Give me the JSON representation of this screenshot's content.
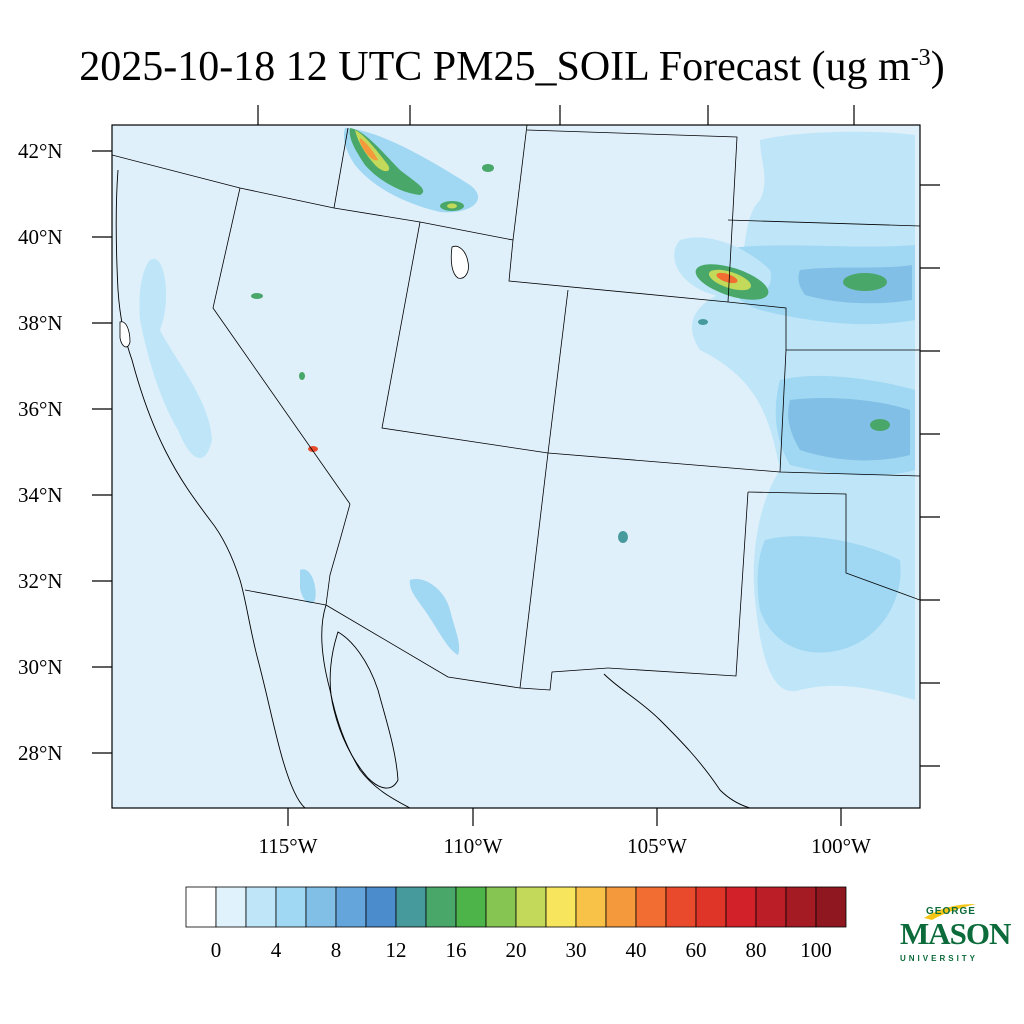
{
  "title": {
    "text": "2025-10-18 12 UTC PM25_SOIL Forecast (ug m",
    "superscript": "-3",
    "closing": ")"
  },
  "map": {
    "lat_labels": [
      "42°N",
      "40°N",
      "38°N",
      "36°N",
      "34°N",
      "32°N",
      "30°N",
      "28°N"
    ],
    "lon_labels": [
      "115°W",
      "110°W",
      "105°W",
      "100°W"
    ],
    "background_color": "#dff0fb"
  },
  "colorbar": {
    "colors": [
      "#ffffff",
      "#e0f3fc",
      "#bfe6f8",
      "#a0d8f3",
      "#82bfe6",
      "#64a6dc",
      "#4a8ccc",
      "#479a9c",
      "#4aa76a",
      "#4db449",
      "#87c552",
      "#c3d95a",
      "#f6e55d",
      "#f8c148",
      "#f59a3c",
      "#f26d31",
      "#e94a2c",
      "#df3529",
      "#d22128",
      "#bb1e26",
      "#a51b23",
      "#8f1720"
    ],
    "labels": [
      "0",
      "4",
      "8",
      "12",
      "16",
      "20",
      "30",
      "40",
      "60",
      "80",
      "100"
    ]
  },
  "logo": {
    "line1": "GEORGE",
    "line2": "MASON",
    "line3": "UNIVERSITY",
    "color": "#0b6b3a",
    "accent": "#f5c518"
  }
}
